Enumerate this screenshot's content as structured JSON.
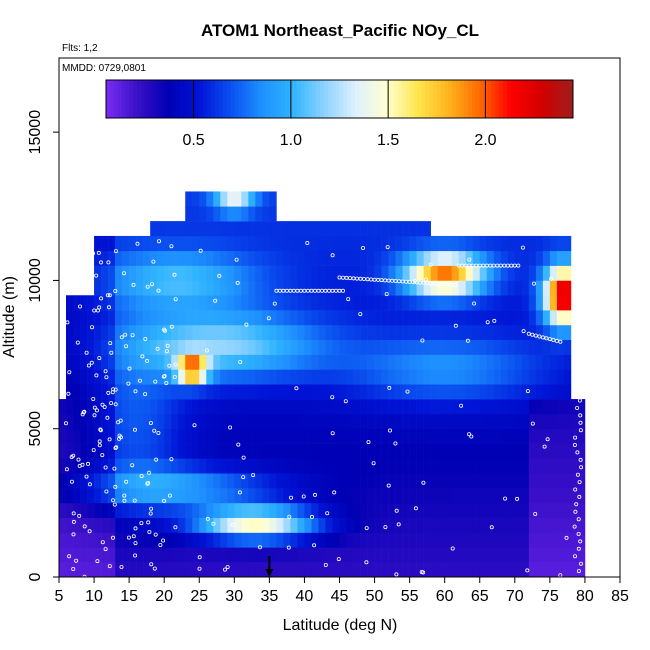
{
  "chart_data": {
    "type": "heatmap",
    "title": "ATOM1 Northeast_Pacific NOy_CL",
    "flights_label": "Flts: 1,2",
    "dates_label": "MMDD: 0729,0801",
    "xlabel": "Latitude (deg N)",
    "ylabel": "Altitude (m)",
    "xlim": [
      5,
      85
    ],
    "ylim": [
      0,
      17500
    ],
    "x_ticks": [
      "5",
      "10",
      "15",
      "20",
      "25",
      "30",
      "35",
      "40",
      "45",
      "50",
      "55",
      "60",
      "65",
      "70",
      "75",
      "80",
      "85"
    ],
    "y_ticks": [
      "0",
      "5000",
      "10000",
      "15000"
    ],
    "colorbar": {
      "range": [
        0.05,
        2.45
      ],
      "ticks": [
        "0.5",
        "1.0",
        "1.5",
        "2.0"
      ],
      "colors": [
        "#7b2cf5",
        "#3a10c8",
        "#0000b4",
        "#0014d6",
        "#0a50f0",
        "#1e90ff",
        "#30b4ff",
        "#8cd2ff",
        "#dcf0ff",
        "#ffffd2",
        "#ffe650",
        "#ffb41e",
        "#ff6a00",
        "#ff0000",
        "#d20000",
        "#a01e1e"
      ]
    },
    "marker_latitude": 35,
    "data_extent": {
      "lat_min": 5,
      "lat_max": 80,
      "alt_max": 13000,
      "max_value": 2.4
    }
  }
}
